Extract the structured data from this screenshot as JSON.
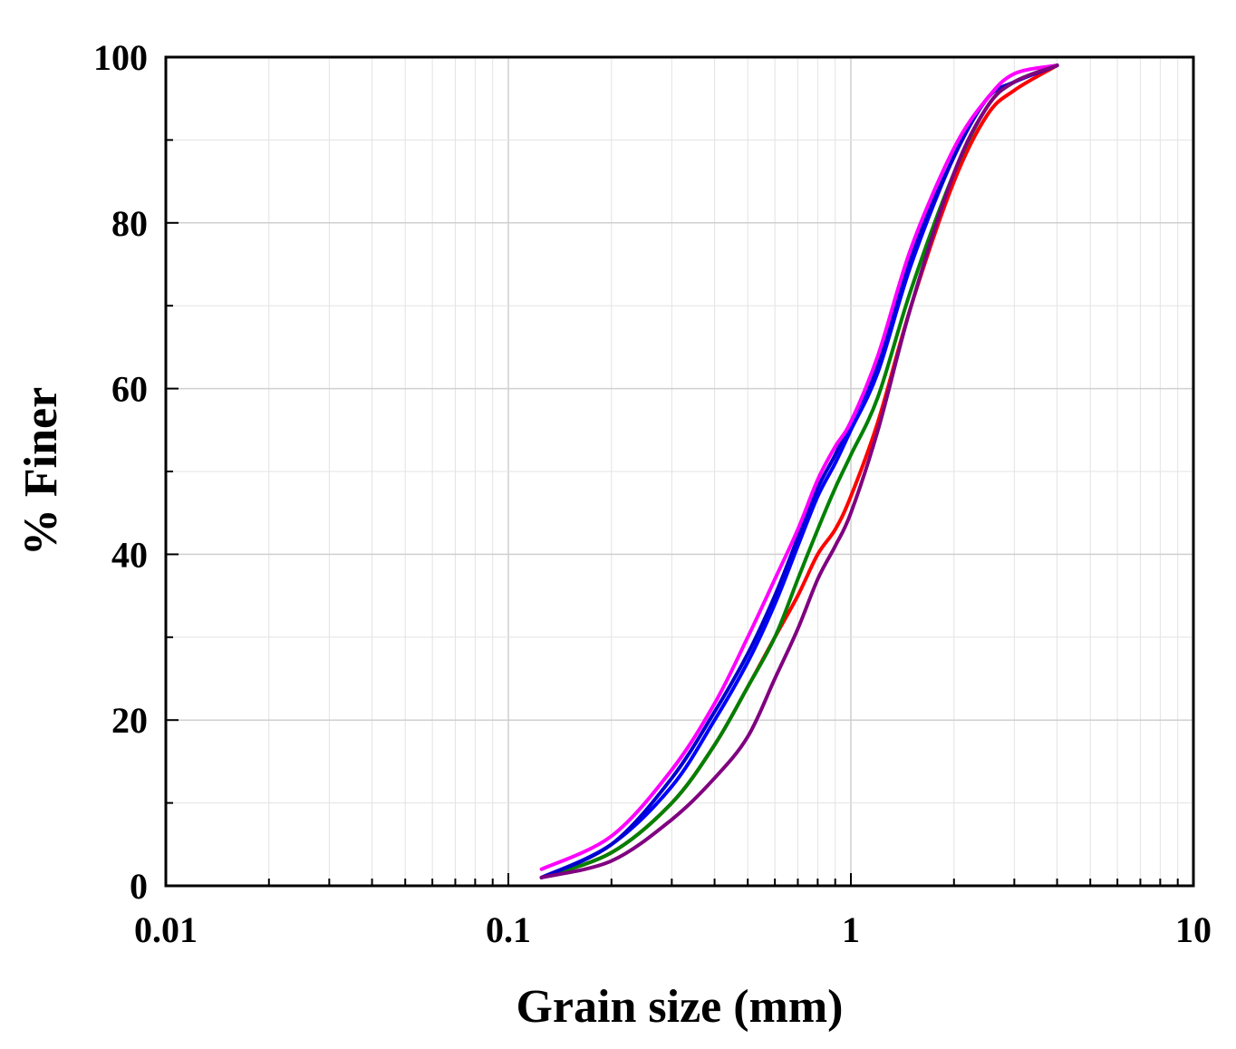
{
  "chart_data": {
    "type": "line",
    "xlabel": "Grain size (mm)",
    "ylabel": "% Finer",
    "xscale": "log",
    "xlim": [
      0.01,
      10
    ],
    "ylim": [
      0,
      100
    ],
    "x_tick_labels": [
      "0.01",
      "0.1",
      "1",
      "10"
    ],
    "x_tick_values": [
      0.01,
      0.1,
      1,
      10
    ],
    "y_tick_labels": [
      "0",
      "20",
      "40",
      "60",
      "80",
      "100"
    ],
    "y_tick_values": [
      0,
      20,
      40,
      60,
      80,
      100
    ],
    "grid": true,
    "legend": "none",
    "series": [
      {
        "color": "#ff0000",
        "points": [
          [
            0.125,
            1
          ],
          [
            0.2,
            4
          ],
          [
            0.3,
            10
          ],
          [
            0.4,
            17
          ],
          [
            0.5,
            24
          ],
          [
            0.6,
            30
          ],
          [
            0.7,
            35
          ],
          [
            0.8,
            40
          ],
          [
            0.9,
            43
          ],
          [
            1.0,
            47
          ],
          [
            1.2,
            56
          ],
          [
            1.5,
            70
          ],
          [
            2.0,
            85
          ],
          [
            2.5,
            93
          ],
          [
            3.0,
            96
          ],
          [
            4.0,
            99
          ]
        ]
      },
      {
        "color": "#008000",
        "points": [
          [
            0.125,
            1
          ],
          [
            0.2,
            4
          ],
          [
            0.3,
            10
          ],
          [
            0.4,
            17
          ],
          [
            0.5,
            24
          ],
          [
            0.6,
            30
          ],
          [
            0.7,
            37
          ],
          [
            0.8,
            43
          ],
          [
            0.9,
            48
          ],
          [
            1.0,
            52
          ],
          [
            1.2,
            59
          ],
          [
            1.5,
            72
          ],
          [
            2.0,
            86
          ],
          [
            2.5,
            94
          ],
          [
            3.0,
            97
          ],
          [
            4.0,
            99
          ]
        ]
      },
      {
        "color": "#0000ff",
        "points": [
          [
            0.125,
            1
          ],
          [
            0.2,
            5
          ],
          [
            0.3,
            12
          ],
          [
            0.4,
            20
          ],
          [
            0.5,
            27
          ],
          [
            0.6,
            34
          ],
          [
            0.7,
            41
          ],
          [
            0.8,
            47
          ],
          [
            0.9,
            51
          ],
          [
            1.0,
            55
          ],
          [
            1.2,
            62
          ],
          [
            1.5,
            75
          ],
          [
            2.0,
            88
          ],
          [
            2.5,
            95
          ],
          [
            3.0,
            97
          ],
          [
            4.0,
            99
          ]
        ]
      },
      {
        "color": "#0000cd",
        "points": [
          [
            0.125,
            1
          ],
          [
            0.2,
            5
          ],
          [
            0.3,
            13
          ],
          [
            0.4,
            21
          ],
          [
            0.5,
            28
          ],
          [
            0.6,
            35
          ],
          [
            0.7,
            42
          ],
          [
            0.8,
            48
          ],
          [
            0.9,
            52
          ],
          [
            1.0,
            56
          ],
          [
            1.2,
            63
          ],
          [
            1.5,
            76
          ],
          [
            2.0,
            88
          ],
          [
            2.5,
            95
          ],
          [
            3.0,
            97
          ],
          [
            4.0,
            99
          ]
        ]
      },
      {
        "color": "#ff00ff",
        "points": [
          [
            0.125,
            2
          ],
          [
            0.2,
            6
          ],
          [
            0.3,
            14
          ],
          [
            0.4,
            22
          ],
          [
            0.5,
            30
          ],
          [
            0.6,
            37
          ],
          [
            0.7,
            43
          ],
          [
            0.8,
            49
          ],
          [
            0.9,
            53
          ],
          [
            1.0,
            56
          ],
          [
            1.2,
            64
          ],
          [
            1.5,
            77
          ],
          [
            2.0,
            89
          ],
          [
            2.5,
            95
          ],
          [
            3.0,
            98
          ],
          [
            4.0,
            99
          ]
        ]
      },
      {
        "color": "#800080",
        "points": [
          [
            0.125,
            1
          ],
          [
            0.2,
            3
          ],
          [
            0.3,
            8
          ],
          [
            0.4,
            13
          ],
          [
            0.5,
            18
          ],
          [
            0.6,
            25
          ],
          [
            0.7,
            31
          ],
          [
            0.8,
            37
          ],
          [
            0.9,
            41
          ],
          [
            1.0,
            45
          ],
          [
            1.2,
            55
          ],
          [
            1.5,
            70
          ],
          [
            2.0,
            86
          ],
          [
            2.5,
            94
          ],
          [
            3.0,
            97
          ],
          [
            4.0,
            99
          ]
        ]
      }
    ]
  }
}
